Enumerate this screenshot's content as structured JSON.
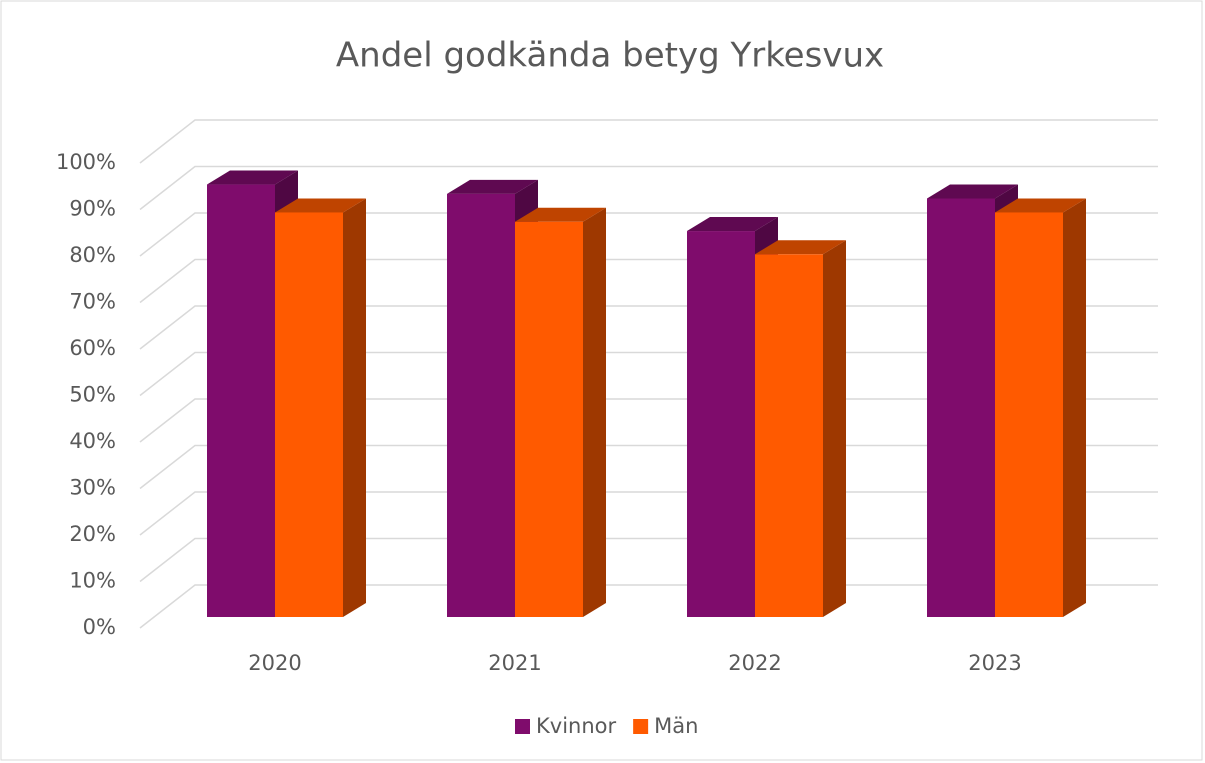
{
  "chart_data": {
    "type": "bar3d",
    "title": "Andel godkända betyg Yrkesvux",
    "categories": [
      "2020",
      "2021",
      "2022",
      "2023"
    ],
    "series": [
      {
        "name": "Kvinnor",
        "color": "#7f0c6c",
        "values": [
          93,
          91,
          83,
          90
        ]
      },
      {
        "name": "Män",
        "color": "#ff5a00",
        "values": [
          87,
          85,
          78,
          87
        ]
      }
    ],
    "ylim": [
      0,
      100
    ],
    "yticks": [
      {
        "value": 0,
        "label": "0%"
      },
      {
        "value": 10,
        "label": "10%"
      },
      {
        "value": 20,
        "label": "20%"
      },
      {
        "value": 30,
        "label": "30%"
      },
      {
        "value": 40,
        "label": "40%"
      },
      {
        "value": 50,
        "label": "50%"
      },
      {
        "value": 60,
        "label": "60%"
      },
      {
        "value": 70,
        "label": "70%"
      },
      {
        "value": 80,
        "label": "80%"
      },
      {
        "value": 90,
        "label": "90%"
      },
      {
        "value": 100,
        "label": "100%"
      }
    ],
    "grid": true,
    "legend": "bottom"
  }
}
